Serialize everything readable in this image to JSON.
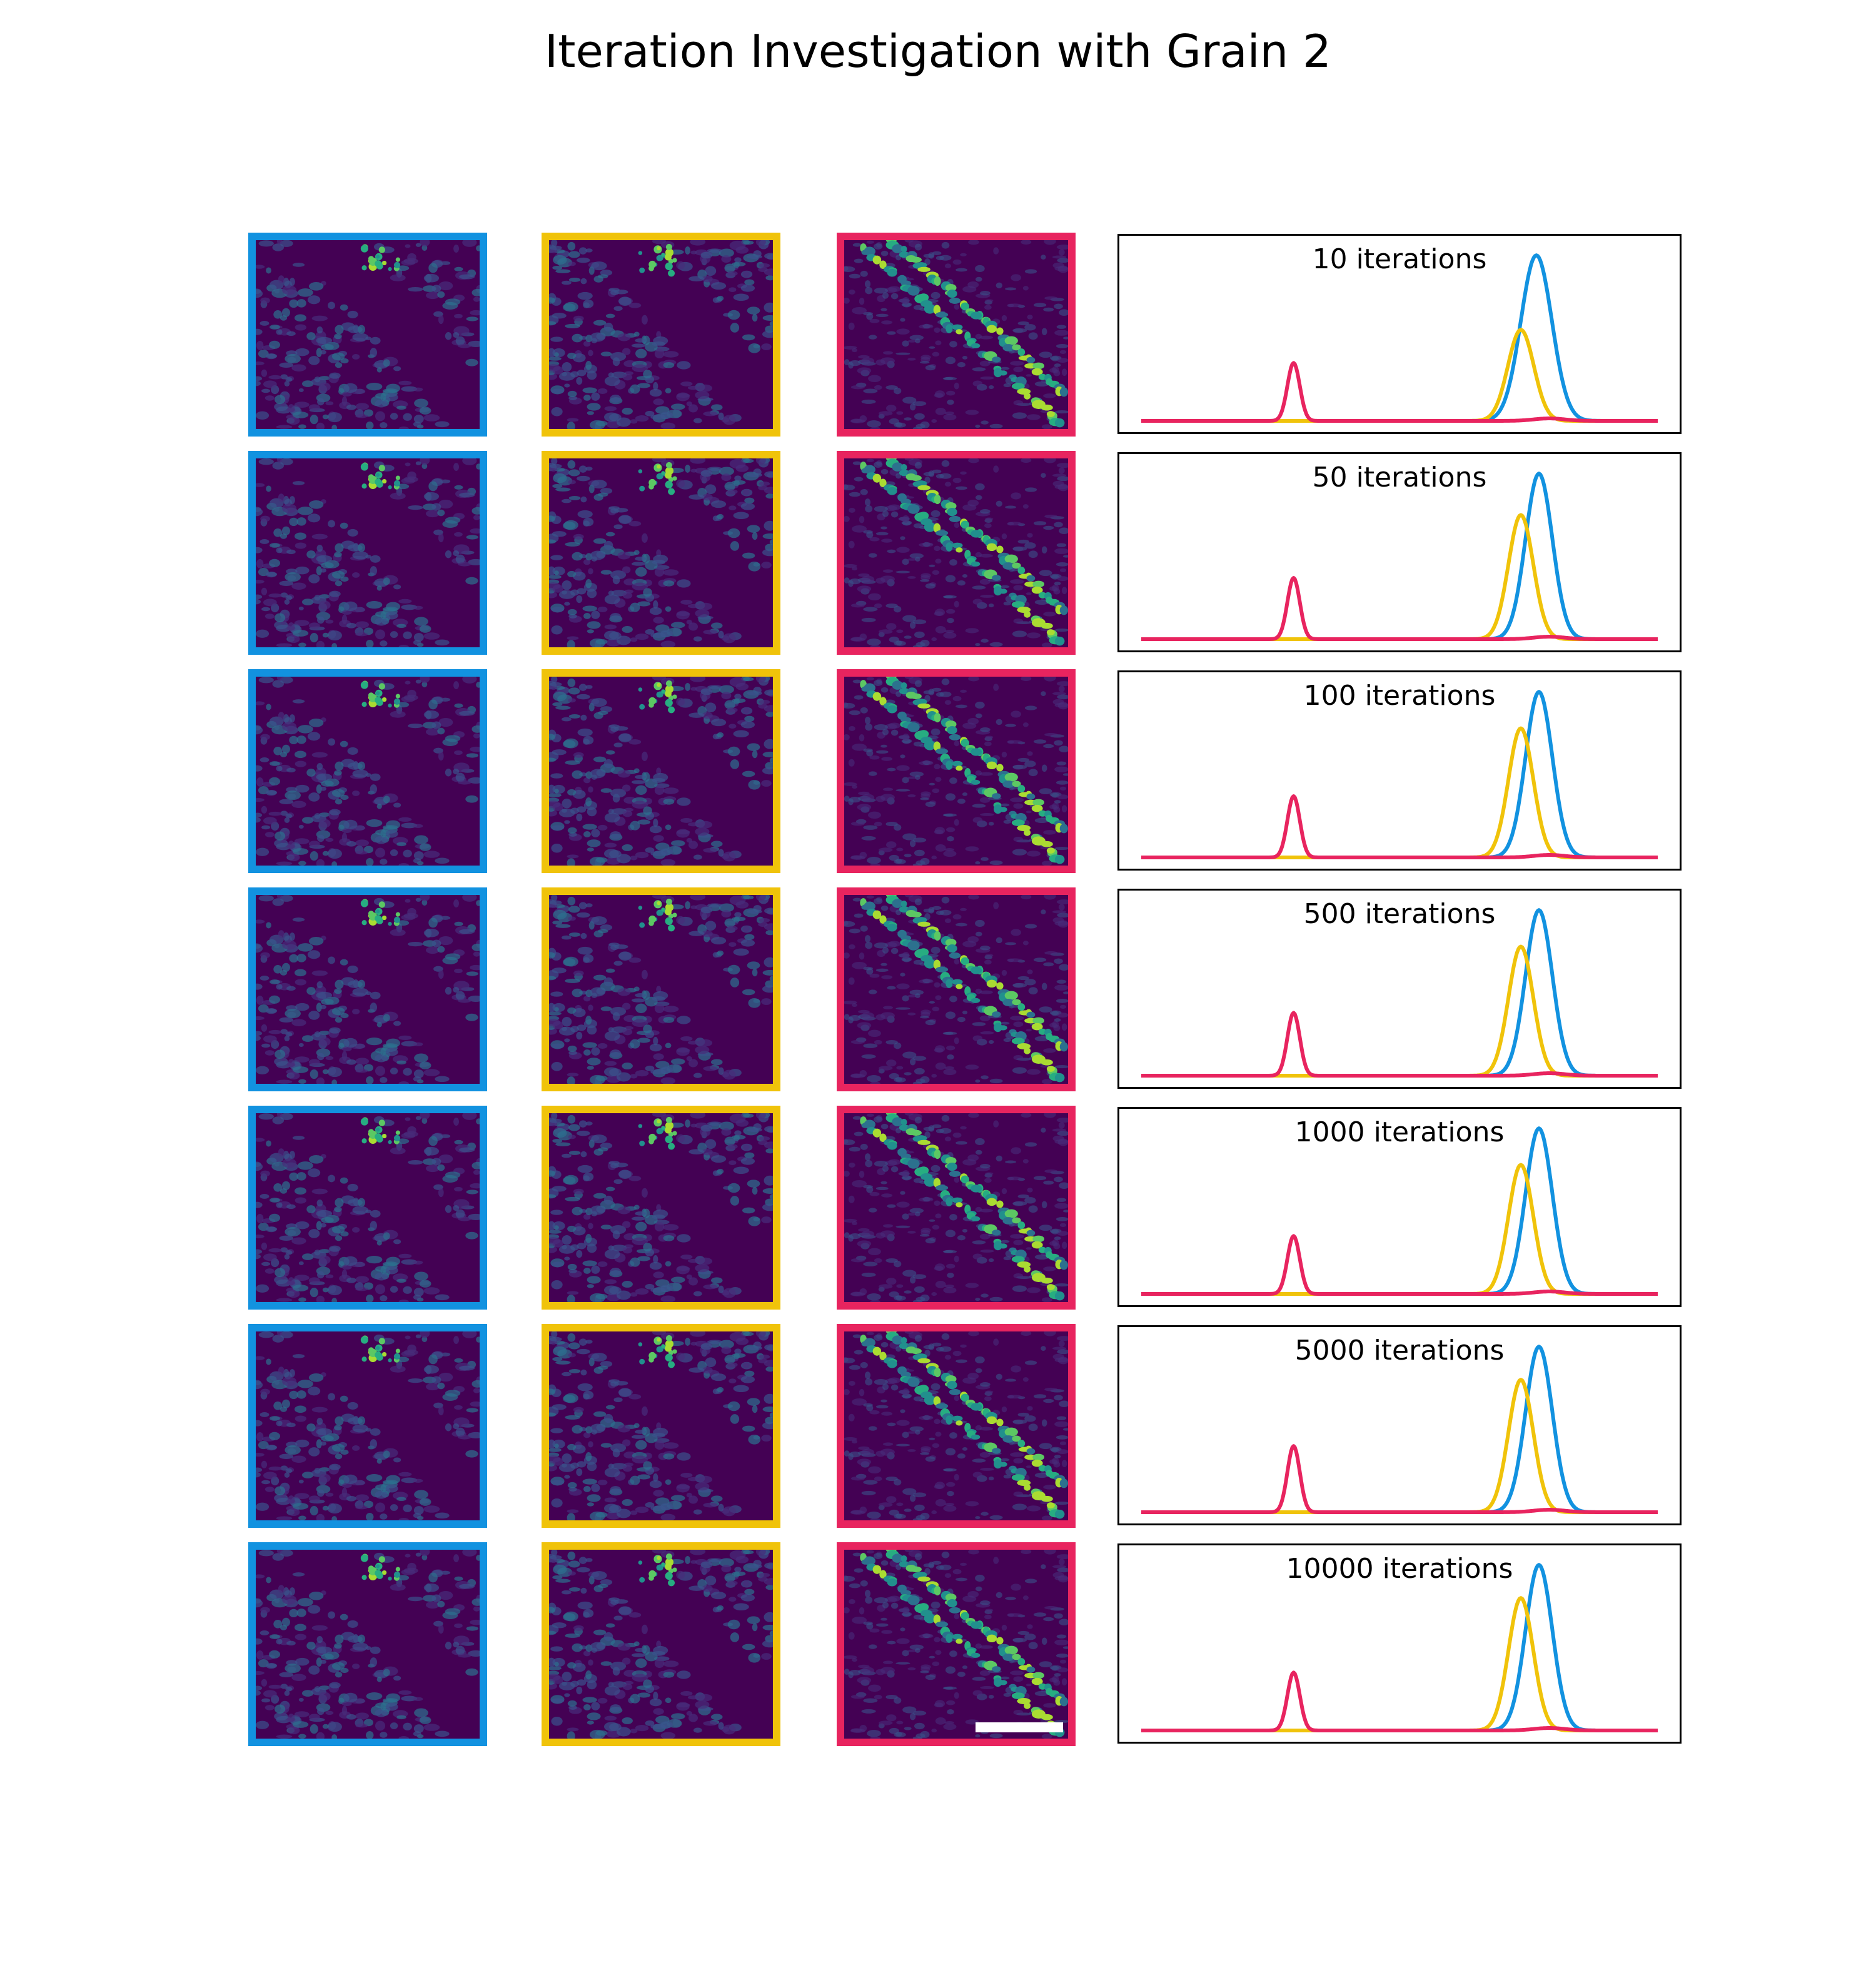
{
  "title": "Iteration Investigation with Grain 2",
  "colors": {
    "blue": "#1292e0",
    "yellow": "#f0c30a",
    "red": "#e8245f",
    "map_bg": "#440154"
  },
  "tile_columns": [
    "blue",
    "yellow",
    "red"
  ],
  "rows": [
    {
      "label": "10 iterations"
    },
    {
      "label": "50 iterations"
    },
    {
      "label": "100 iterations"
    },
    {
      "label": "500 iterations"
    },
    {
      "label": "1000 iterations"
    },
    {
      "label": "5000 iterations"
    },
    {
      "label": "10000 iterations"
    }
  ],
  "scale_bar": true,
  "chart_data": {
    "type": "line",
    "x_range": [
      0,
      1
    ],
    "y_range": [
      0,
      1.05
    ],
    "axes_ticks": false,
    "rows": [
      {
        "label": "10 iterations",
        "series": [
          {
            "color": "blue",
            "peak_x": 0.765,
            "peak_height": 1.0,
            "width": 0.03
          },
          {
            "color": "yellow",
            "peak_x": 0.735,
            "peak_height": 0.55,
            "width": 0.025
          },
          {
            "color": "red",
            "peak_x": 0.295,
            "peak_height": 0.35,
            "width": 0.012
          }
        ]
      },
      {
        "label": "50 iterations",
        "series": [
          {
            "color": "blue",
            "peak_x": 0.77,
            "peak_height": 1.0,
            "width": 0.026
          },
          {
            "color": "yellow",
            "peak_x": 0.735,
            "peak_height": 0.75,
            "width": 0.024
          },
          {
            "color": "red",
            "peak_x": 0.295,
            "peak_height": 0.37,
            "width": 0.012
          }
        ]
      },
      {
        "label": "100 iterations",
        "series": [
          {
            "color": "blue",
            "peak_x": 0.77,
            "peak_height": 1.0,
            "width": 0.026
          },
          {
            "color": "yellow",
            "peak_x": 0.735,
            "peak_height": 0.78,
            "width": 0.024
          },
          {
            "color": "red",
            "peak_x": 0.295,
            "peak_height": 0.37,
            "width": 0.012
          }
        ]
      },
      {
        "label": "500 iterations",
        "series": [
          {
            "color": "blue",
            "peak_x": 0.77,
            "peak_height": 1.0,
            "width": 0.026
          },
          {
            "color": "yellow",
            "peak_x": 0.735,
            "peak_height": 0.78,
            "width": 0.024
          },
          {
            "color": "red",
            "peak_x": 0.295,
            "peak_height": 0.38,
            "width": 0.012
          }
        ]
      },
      {
        "label": "1000 iterations",
        "series": [
          {
            "color": "blue",
            "peak_x": 0.77,
            "peak_height": 1.0,
            "width": 0.026
          },
          {
            "color": "yellow",
            "peak_x": 0.735,
            "peak_height": 0.78,
            "width": 0.024
          },
          {
            "color": "red",
            "peak_x": 0.295,
            "peak_height": 0.35,
            "width": 0.012
          }
        ]
      },
      {
        "label": "5000 iterations",
        "series": [
          {
            "color": "blue",
            "peak_x": 0.77,
            "peak_height": 1.0,
            "width": 0.026
          },
          {
            "color": "yellow",
            "peak_x": 0.735,
            "peak_height": 0.8,
            "width": 0.024
          },
          {
            "color": "red",
            "peak_x": 0.295,
            "peak_height": 0.4,
            "width": 0.012
          }
        ]
      },
      {
        "label": "10000 iterations",
        "series": [
          {
            "color": "blue",
            "peak_x": 0.77,
            "peak_height": 1.0,
            "width": 0.026
          },
          {
            "color": "yellow",
            "peak_x": 0.735,
            "peak_height": 0.8,
            "width": 0.024
          },
          {
            "color": "red",
            "peak_x": 0.295,
            "peak_height": 0.35,
            "width": 0.012
          }
        ]
      }
    ]
  }
}
